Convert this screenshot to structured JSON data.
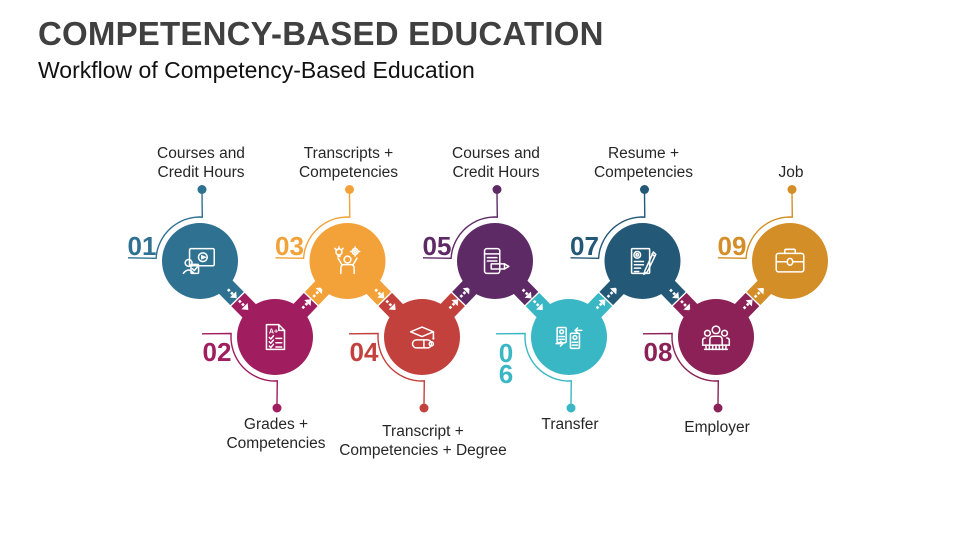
{
  "slide": {
    "title": "COMPETENCY-BASED EDUCATION",
    "subtitle": "Workflow of Competency-Based Education",
    "background_color": "#ffffff",
    "title_color": "#404040",
    "label_color": "#262626"
  },
  "workflow": {
    "steps": [
      {
        "number": "01",
        "label": "Courses and\nCredit Hours",
        "color": "#2E7191",
        "icon": "video-course-icon"
      },
      {
        "number": "02",
        "label": "Grades +\nCompetencies",
        "color": "#A01D60",
        "icon": "grade-report-icon"
      },
      {
        "number": "03",
        "label": "Transcripts +\nCompetencies",
        "color": "#F2A238",
        "icon": "skills-person-icon"
      },
      {
        "number": "04",
        "label": "Transcript +\nCompetencies + Degree",
        "color": "#C2413C",
        "icon": "graduation-diploma-icon"
      },
      {
        "number": "05",
        "label": "Courses and\nCredit Hours",
        "color": "#5E2A66",
        "icon": "course-notes-icon"
      },
      {
        "number": "06",
        "label": "Transfer",
        "color": "#3AB7C5",
        "icon": "transfer-icon"
      },
      {
        "number": "07",
        "label": "Resume +\nCompetencies",
        "color": "#245877",
        "icon": "resume-icon"
      },
      {
        "number": "08",
        "label": "Employer",
        "color": "#8B2156",
        "icon": "employer-team-icon"
      },
      {
        "number": "09",
        "label": "Job",
        "color": "#D48E27",
        "icon": "briefcase-icon"
      }
    ],
    "icon_glyphs": {
      "grade_mark": "A+"
    }
  }
}
